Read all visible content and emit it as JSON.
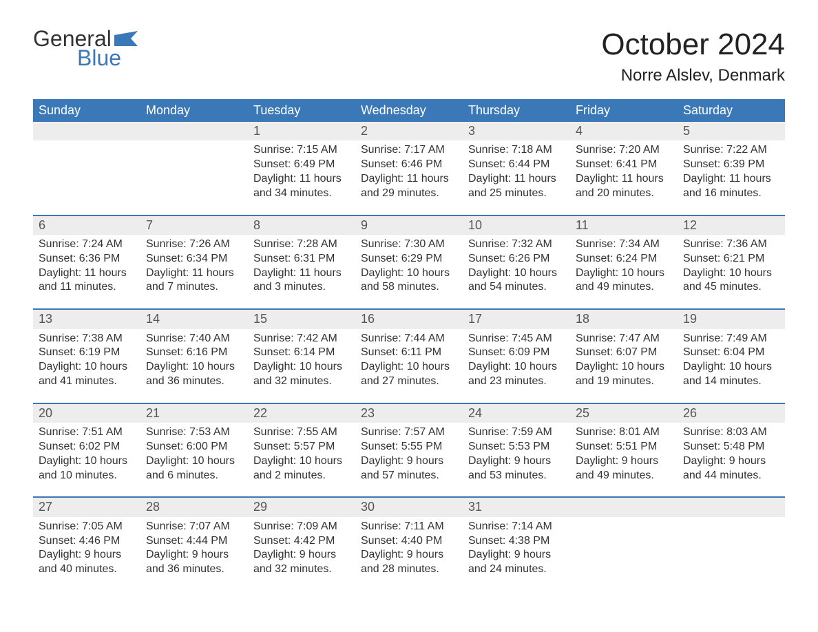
{
  "brand": {
    "top": "General",
    "bottom": "Blue",
    "flag_color": "#3b78b8"
  },
  "title": "October 2024",
  "location": "Norre Alslev, Denmark",
  "header_bg": "#3b78b8",
  "header_fg": "#ffffff",
  "daynum_bg": "#ededed",
  "week_border_color": "#3b78b8",
  "columns": [
    "Sunday",
    "Monday",
    "Tuesday",
    "Wednesday",
    "Thursday",
    "Friday",
    "Saturday"
  ],
  "weeks": [
    [
      null,
      null,
      {
        "n": "1",
        "sunrise": "7:15 AM",
        "sunset": "6:49 PM",
        "dl1": "Daylight: 11 hours",
        "dl2": "and 34 minutes."
      },
      {
        "n": "2",
        "sunrise": "7:17 AM",
        "sunset": "6:46 PM",
        "dl1": "Daylight: 11 hours",
        "dl2": "and 29 minutes."
      },
      {
        "n": "3",
        "sunrise": "7:18 AM",
        "sunset": "6:44 PM",
        "dl1": "Daylight: 11 hours",
        "dl2": "and 25 minutes."
      },
      {
        "n": "4",
        "sunrise": "7:20 AM",
        "sunset": "6:41 PM",
        "dl1": "Daylight: 11 hours",
        "dl2": "and 20 minutes."
      },
      {
        "n": "5",
        "sunrise": "7:22 AM",
        "sunset": "6:39 PM",
        "dl1": "Daylight: 11 hours",
        "dl2": "and 16 minutes."
      }
    ],
    [
      {
        "n": "6",
        "sunrise": "7:24 AM",
        "sunset": "6:36 PM",
        "dl1": "Daylight: 11 hours",
        "dl2": "and 11 minutes."
      },
      {
        "n": "7",
        "sunrise": "7:26 AM",
        "sunset": "6:34 PM",
        "dl1": "Daylight: 11 hours",
        "dl2": "and 7 minutes."
      },
      {
        "n": "8",
        "sunrise": "7:28 AM",
        "sunset": "6:31 PM",
        "dl1": "Daylight: 11 hours",
        "dl2": "and 3 minutes."
      },
      {
        "n": "9",
        "sunrise": "7:30 AM",
        "sunset": "6:29 PM",
        "dl1": "Daylight: 10 hours",
        "dl2": "and 58 minutes."
      },
      {
        "n": "10",
        "sunrise": "7:32 AM",
        "sunset": "6:26 PM",
        "dl1": "Daylight: 10 hours",
        "dl2": "and 54 minutes."
      },
      {
        "n": "11",
        "sunrise": "7:34 AM",
        "sunset": "6:24 PM",
        "dl1": "Daylight: 10 hours",
        "dl2": "and 49 minutes."
      },
      {
        "n": "12",
        "sunrise": "7:36 AM",
        "sunset": "6:21 PM",
        "dl1": "Daylight: 10 hours",
        "dl2": "and 45 minutes."
      }
    ],
    [
      {
        "n": "13",
        "sunrise": "7:38 AM",
        "sunset": "6:19 PM",
        "dl1": "Daylight: 10 hours",
        "dl2": "and 41 minutes."
      },
      {
        "n": "14",
        "sunrise": "7:40 AM",
        "sunset": "6:16 PM",
        "dl1": "Daylight: 10 hours",
        "dl2": "and 36 minutes."
      },
      {
        "n": "15",
        "sunrise": "7:42 AM",
        "sunset": "6:14 PM",
        "dl1": "Daylight: 10 hours",
        "dl2": "and 32 minutes."
      },
      {
        "n": "16",
        "sunrise": "7:44 AM",
        "sunset": "6:11 PM",
        "dl1": "Daylight: 10 hours",
        "dl2": "and 27 minutes."
      },
      {
        "n": "17",
        "sunrise": "7:45 AM",
        "sunset": "6:09 PM",
        "dl1": "Daylight: 10 hours",
        "dl2": "and 23 minutes."
      },
      {
        "n": "18",
        "sunrise": "7:47 AM",
        "sunset": "6:07 PM",
        "dl1": "Daylight: 10 hours",
        "dl2": "and 19 minutes."
      },
      {
        "n": "19",
        "sunrise": "7:49 AM",
        "sunset": "6:04 PM",
        "dl1": "Daylight: 10 hours",
        "dl2": "and 14 minutes."
      }
    ],
    [
      {
        "n": "20",
        "sunrise": "7:51 AM",
        "sunset": "6:02 PM",
        "dl1": "Daylight: 10 hours",
        "dl2": "and 10 minutes."
      },
      {
        "n": "21",
        "sunrise": "7:53 AM",
        "sunset": "6:00 PM",
        "dl1": "Daylight: 10 hours",
        "dl2": "and 6 minutes."
      },
      {
        "n": "22",
        "sunrise": "7:55 AM",
        "sunset": "5:57 PM",
        "dl1": "Daylight: 10 hours",
        "dl2": "and 2 minutes."
      },
      {
        "n": "23",
        "sunrise": "7:57 AM",
        "sunset": "5:55 PM",
        "dl1": "Daylight: 9 hours",
        "dl2": "and 57 minutes."
      },
      {
        "n": "24",
        "sunrise": "7:59 AM",
        "sunset": "5:53 PM",
        "dl1": "Daylight: 9 hours",
        "dl2": "and 53 minutes."
      },
      {
        "n": "25",
        "sunrise": "8:01 AM",
        "sunset": "5:51 PM",
        "dl1": "Daylight: 9 hours",
        "dl2": "and 49 minutes."
      },
      {
        "n": "26",
        "sunrise": "8:03 AM",
        "sunset": "5:48 PM",
        "dl1": "Daylight: 9 hours",
        "dl2": "and 44 minutes."
      }
    ],
    [
      {
        "n": "27",
        "sunrise": "7:05 AM",
        "sunset": "4:46 PM",
        "dl1": "Daylight: 9 hours",
        "dl2": "and 40 minutes."
      },
      {
        "n": "28",
        "sunrise": "7:07 AM",
        "sunset": "4:44 PM",
        "dl1": "Daylight: 9 hours",
        "dl2": "and 36 minutes."
      },
      {
        "n": "29",
        "sunrise": "7:09 AM",
        "sunset": "4:42 PM",
        "dl1": "Daylight: 9 hours",
        "dl2": "and 32 minutes."
      },
      {
        "n": "30",
        "sunrise": "7:11 AM",
        "sunset": "4:40 PM",
        "dl1": "Daylight: 9 hours",
        "dl2": "and 28 minutes."
      },
      {
        "n": "31",
        "sunrise": "7:14 AM",
        "sunset": "4:38 PM",
        "dl1": "Daylight: 9 hours",
        "dl2": "and 24 minutes."
      },
      null,
      null
    ]
  ],
  "labels": {
    "sunrise_prefix": "Sunrise: ",
    "sunset_prefix": "Sunset: "
  }
}
